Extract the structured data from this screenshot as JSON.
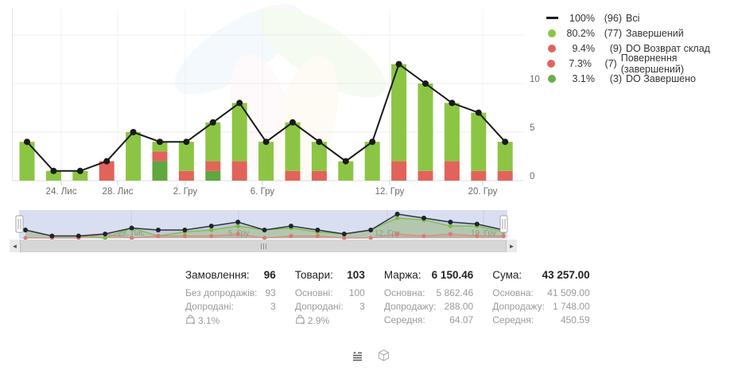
{
  "colors": {
    "green": "#8cc544",
    "dark_green": "#5fa73f",
    "red": "#e2635a",
    "line": "#1a1a1a",
    "grid": "#ececec",
    "axis_text": "#6b6b6b",
    "nav_bg": "#d9dff0",
    "nav_label": "#8e96a8"
  },
  "legend": {
    "items": [
      {
        "swatch": "line",
        "color": "#1a1a1a",
        "pct": "100%",
        "count": "(96)",
        "label": "Всі"
      },
      {
        "swatch": "dot",
        "color": "#8cc544",
        "pct": "80.2%",
        "count": "(77)",
        "label": "Завершений"
      },
      {
        "swatch": "dot",
        "color": "#e2635a",
        "pct": "9.4%",
        "count": "(9)",
        "label": "DO Возврат склад"
      },
      {
        "swatch": "dot",
        "color": "#e2635a",
        "pct": "7.3%",
        "count": "(7)",
        "label": "Повернення (завершений)"
      },
      {
        "swatch": "dot",
        "color": "#6aad4a",
        "pct": "3.1%",
        "count": "(3)",
        "label": "DO Завершено"
      }
    ]
  },
  "chart_data": {
    "type": "combo (stacked bars + line)",
    "n_points": 19,
    "series": [
      {
        "name": "Всі",
        "type": "line",
        "color": "#1a1a1a",
        "total": 96,
        "values": [
          4,
          1,
          1,
          2,
          5,
          4,
          4,
          6,
          8,
          4,
          6,
          4,
          2,
          4,
          12,
          10,
          8,
          7,
          4
        ]
      },
      {
        "name": "Завершений",
        "type": "bar",
        "color": "#8cc544",
        "total": 77,
        "values": [
          4,
          1,
          1,
          0,
          5,
          1,
          3,
          4,
          6,
          4,
          5,
          3,
          2,
          4,
          10,
          9,
          6,
          6,
          3
        ]
      },
      {
        "name": "DO Возврат склад + Повернення (завершений)",
        "type": "bar",
        "color": "#e2635a",
        "total": 16,
        "values": [
          0,
          0,
          0,
          2,
          0,
          1,
          1,
          1,
          2,
          0,
          1,
          1,
          0,
          0,
          2,
          1,
          2,
          1,
          1
        ]
      },
      {
        "name": "DO Завершено",
        "type": "bar",
        "color": "#5fa73f",
        "total": 3,
        "values": [
          0,
          0,
          0,
          0,
          0,
          2,
          0,
          1,
          0,
          0,
          0,
          0,
          0,
          0,
          0,
          0,
          0,
          0,
          0
        ]
      }
    ],
    "stack_order_bottom_to_top": [
      "DO Завершено",
      "red",
      "Завершений"
    ],
    "x_ticks": [
      {
        "label": "24. Лис",
        "x": 77
      },
      {
        "label": "28. Лис",
        "x": 148
      },
      {
        "label": "2. Гру",
        "x": 233
      },
      {
        "label": "6. Гру",
        "x": 330
      },
      {
        "label": "12. Гру",
        "x": 490
      },
      {
        "label": "20. Гру",
        "x": 607
      }
    ],
    "y_ticks": [
      {
        "label": "0",
        "value": 0
      },
      {
        "label": "5",
        "value": 5
      },
      {
        "label": "10",
        "value": 10
      }
    ],
    "ylim": [
      0,
      15
    ],
    "grid": "horizontal + vertical at date ticks, light gray",
    "legend_position": "top-right"
  },
  "navigator": {
    "labels": [
      {
        "text": "28. Лис",
        "x": 165
      },
      {
        "text": "5. Гру",
        "x": 300
      },
      {
        "text": "12. Гру",
        "x": 487
      },
      {
        "text": "19. Гру",
        "x": 608
      }
    ]
  },
  "scrollbar": {
    "left_arrow": "◄",
    "right_arrow": "►"
  },
  "stats": {
    "columns": [
      {
        "title": "Замовлення:",
        "value": "96",
        "rows": [
          {
            "label": "Без допродажів:",
            "value": "93"
          },
          {
            "label": "Допродані:",
            "value": "3"
          }
        ],
        "basket_pct": "3.1%"
      },
      {
        "title": "Товари:",
        "value": "103",
        "rows": [
          {
            "label": "Основні:",
            "value": "100"
          },
          {
            "label": "Допродані:",
            "value": "3"
          }
        ],
        "basket_pct": "2.9%"
      },
      {
        "title": "Маржа:",
        "value": "6 150.46",
        "rows": [
          {
            "label": "Основна:",
            "value": "5 862.46"
          },
          {
            "label": "Допродажу:",
            "value": "288.00"
          },
          {
            "label": "Середня:",
            "value": "64.07"
          }
        ]
      },
      {
        "title": "Сума:",
        "value": "43 257.00",
        "rows": [
          {
            "label": "Основна:",
            "value": "41 509.00"
          },
          {
            "label": "Допродажу:",
            "value": "1 748.00"
          },
          {
            "label": "Середня:",
            "value": "450.59"
          }
        ]
      }
    ]
  }
}
